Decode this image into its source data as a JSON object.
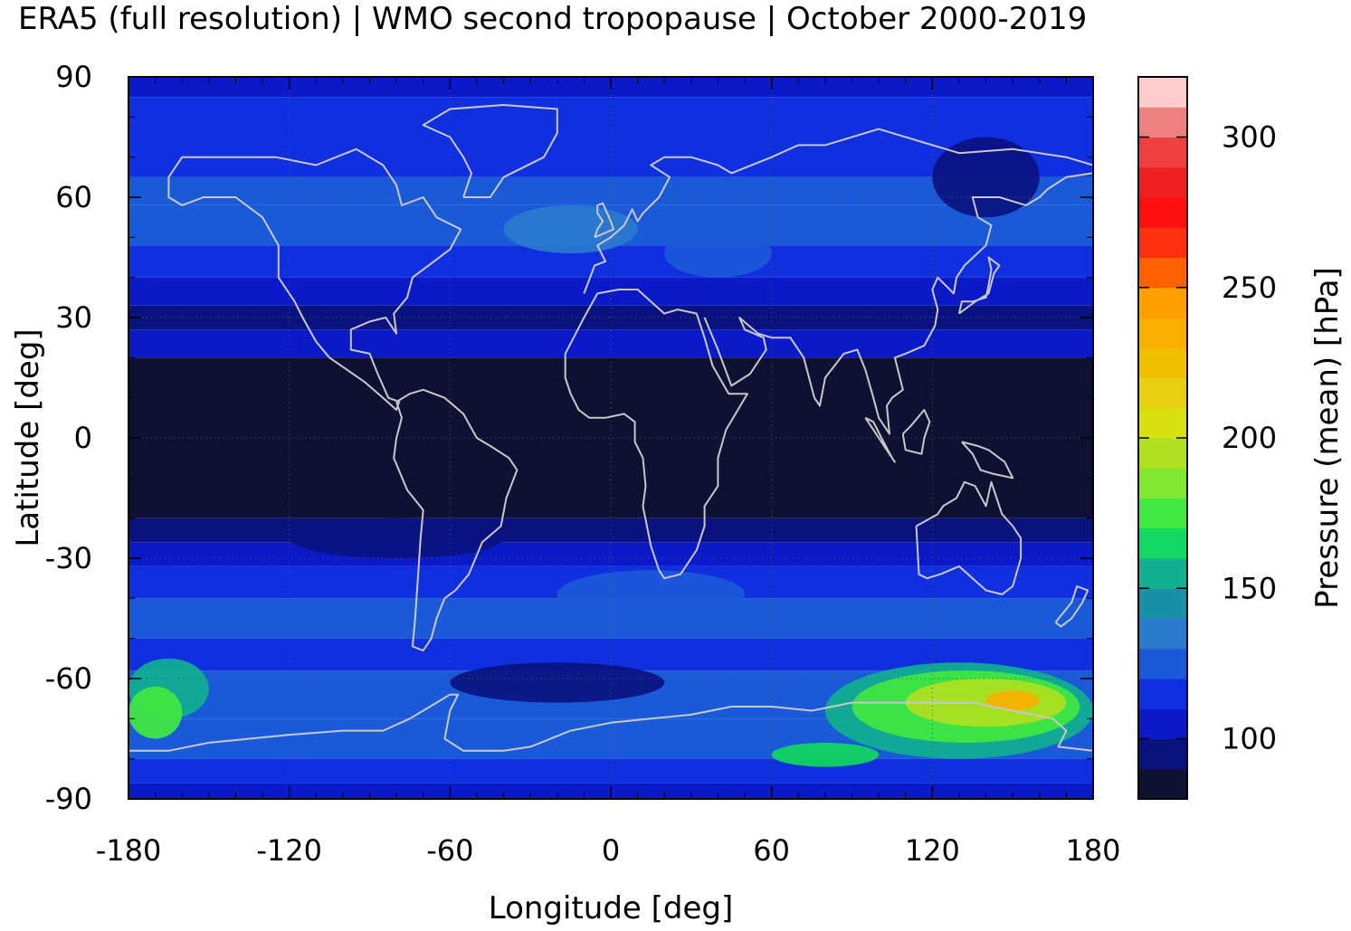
{
  "chart_data": {
    "type": "heatmap",
    "title": "ERA5 (full resolution) | WMO second tropopause | October 2000-2019",
    "xlabel": "Longitude [deg]",
    "ylabel": "Latitude [deg]",
    "colorbar_label": "Pressure (mean) [hPa]",
    "xlim": [
      -180,
      180
    ],
    "ylim": [
      -90,
      90
    ],
    "xticks": [
      -180,
      -120,
      -60,
      0,
      60,
      120,
      180
    ],
    "xtick_labels": [
      "-180",
      "-120",
      "-60",
      "0",
      "60",
      "120",
      "180"
    ],
    "yticks": [
      -90,
      -60,
      -30,
      0,
      30,
      60,
      90
    ],
    "ytick_labels": [
      "-90",
      "-60",
      "-30",
      "0",
      "30",
      "60",
      "90"
    ],
    "grid": true,
    "colorbar": {
      "range": [
        80,
        320
      ],
      "ticks": [
        100,
        150,
        200,
        250,
        300
      ],
      "tick_labels": [
        "100",
        "150",
        "200",
        "250",
        "300"
      ],
      "levels": [
        {
          "from": 80,
          "to": 90,
          "color": "#0f1133"
        },
        {
          "from": 90,
          "to": 100,
          "color": "#0a1280"
        },
        {
          "from": 100,
          "to": 110,
          "color": "#0a1ac8"
        },
        {
          "from": 110,
          "to": 120,
          "color": "#1030e0"
        },
        {
          "from": 120,
          "to": 130,
          "color": "#1a5ad8"
        },
        {
          "from": 130,
          "to": 140,
          "color": "#2a7ad0"
        },
        {
          "from": 140,
          "to": 150,
          "color": "#1a90a8"
        },
        {
          "from": 150,
          "to": 160,
          "color": "#10b090"
        },
        {
          "from": 160,
          "to": 170,
          "color": "#10d860"
        },
        {
          "from": 170,
          "to": 180,
          "color": "#40e840"
        },
        {
          "from": 180,
          "to": 190,
          "color": "#80e830"
        },
        {
          "from": 190,
          "to": 200,
          "color": "#b0e020"
        },
        {
          "from": 200,
          "to": 210,
          "color": "#d8e010"
        },
        {
          "from": 210,
          "to": 220,
          "color": "#e8d010"
        },
        {
          "from": 220,
          "to": 230,
          "color": "#f0c000"
        },
        {
          "from": 230,
          "to": 240,
          "color": "#f8b000"
        },
        {
          "from": 240,
          "to": 250,
          "color": "#ffa000"
        },
        {
          "from": 250,
          "to": 260,
          "color": "#ff6000"
        },
        {
          "from": 260,
          "to": 270,
          "color": "#ff3010"
        },
        {
          "from": 270,
          "to": 280,
          "color": "#ff1010"
        },
        {
          "from": 280,
          "to": 290,
          "color": "#f02020"
        },
        {
          "from": 290,
          "to": 300,
          "color": "#f04040"
        },
        {
          "from": 300,
          "to": 310,
          "color": "#f08080"
        },
        {
          "from": 310,
          "to": 320,
          "color": "#ffcccc"
        }
      ]
    },
    "latitude_bands": [
      {
        "lat_from": 85,
        "lat_to": 90,
        "value": 100
      },
      {
        "lat_from": 75,
        "lat_to": 85,
        "value": 115
      },
      {
        "lat_from": 65,
        "lat_to": 75,
        "value": 118
      },
      {
        "lat_from": 58,
        "lat_to": 65,
        "value": 122
      },
      {
        "lat_from": 48,
        "lat_to": 58,
        "value": 125
      },
      {
        "lat_from": 40,
        "lat_to": 48,
        "value": 112
      },
      {
        "lat_from": 33,
        "lat_to": 40,
        "value": 105
      },
      {
        "lat_from": 27,
        "lat_to": 33,
        "value": 95
      },
      {
        "lat_from": 20,
        "lat_to": 27,
        "value": 102
      },
      {
        "lat_from": -20,
        "lat_to": 20,
        "value": 85
      },
      {
        "lat_from": -26,
        "lat_to": -20,
        "value": 95
      },
      {
        "lat_from": -32,
        "lat_to": -26,
        "value": 105
      },
      {
        "lat_from": -40,
        "lat_to": -32,
        "value": 115
      },
      {
        "lat_from": -50,
        "lat_to": -40,
        "value": 125
      },
      {
        "lat_from": -58,
        "lat_to": -50,
        "value": 118
      },
      {
        "lat_from": -70,
        "lat_to": -58,
        "value": 128
      },
      {
        "lat_from": -80,
        "lat_to": -70,
        "value": 120
      },
      {
        "lat_from": -86,
        "lat_to": -80,
        "value": 110
      },
      {
        "lat_from": -90,
        "lat_to": -86,
        "value": 105
      }
    ],
    "regions": [
      {
        "lon_from": -40,
        "lon_to": 10,
        "lat_from": 46,
        "lat_to": 58,
        "value": 135
      },
      {
        "lon_from": 20,
        "lon_to": 60,
        "lat_from": 40,
        "lat_to": 52,
        "value": 128
      },
      {
        "lon_from": 120,
        "lon_to": 160,
        "lat_from": 55,
        "lat_to": 75,
        "value": 95
      },
      {
        "lon_from": -120,
        "lon_to": -40,
        "lat_from": -30,
        "lat_to": -20,
        "value": 98
      },
      {
        "lon_from": -20,
        "lon_to": 50,
        "lat_from": -45,
        "lat_to": -33,
        "value": 128
      },
      {
        "lon_from": -60,
        "lon_to": 20,
        "lat_from": -66,
        "lat_to": -56,
        "value": 95
      },
      {
        "lon_from": -180,
        "lon_to": -150,
        "lat_from": -70,
        "lat_to": -55,
        "value": 155
      },
      {
        "lon_from": -180,
        "lon_to": -160,
        "lat_from": -75,
        "lat_to": -62,
        "value": 175
      },
      {
        "lon_from": 80,
        "lon_to": 180,
        "lat_from": -80,
        "lat_to": -56,
        "value": 150
      },
      {
        "lon_from": 90,
        "lon_to": 175,
        "lat_from": -76,
        "lat_to": -58,
        "value": 170
      },
      {
        "lon_from": 110,
        "lon_to": 170,
        "lat_from": -72,
        "lat_to": -60,
        "value": 190
      },
      {
        "lon_from": 140,
        "lon_to": 160,
        "lat_from": -68,
        "lat_to": -63,
        "value": 230
      },
      {
        "lon_from": 60,
        "lon_to": 100,
        "lat_from": -82,
        "lat_to": -76,
        "value": 160
      }
    ]
  }
}
